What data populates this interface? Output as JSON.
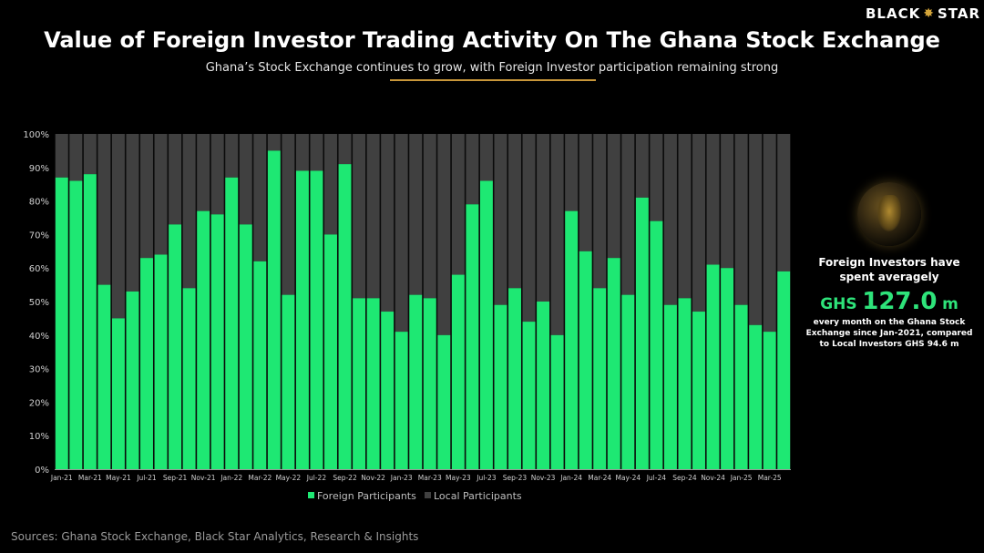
{
  "brand": {
    "name_left": "BLACK",
    "name_right": "STAR"
  },
  "title": "Value of Foreign Investor Trading Activity On The Ghana Stock Exchange",
  "subtitle": "Ghana’s Stock Exchange continues to grow, with Foreign Investor participation remaining strong",
  "side": {
    "heading": "Foreign Investors have spent averagely",
    "currency": "GHS",
    "value": "127.0",
    "unit": "m",
    "note": "every month on the Ghana Stock Exchange since Jan-2021, compared to Local Investors GHS 94.6 m"
  },
  "source": "Sources: Ghana Stock Exchange, Black Star Analytics, Research & Insights",
  "colors": {
    "foreign": "#1ee873",
    "local": "#404040",
    "accent": "#c9973a"
  },
  "chart_data": {
    "type": "bar",
    "stacked": true,
    "percent": true,
    "ylim": [
      0,
      100
    ],
    "yticks": [
      "0%",
      "10%",
      "20%",
      "30%",
      "40%",
      "50%",
      "60%",
      "70%",
      "80%",
      "90%",
      "100%"
    ],
    "x_tick_labels": [
      "Jan-21",
      "Mar-21",
      "May-21",
      "Jul-21",
      "Sep-21",
      "Nov-21",
      "Jan-22",
      "Mar-22",
      "May-22",
      "Jul-22",
      "Sep-22",
      "Nov-22",
      "Jan-23",
      "Mar-23",
      "May-23",
      "Jul-23",
      "Sep-23",
      "Nov-23",
      "Jan-24",
      "Mar-24",
      "May-24",
      "Jul-24",
      "Sep-24",
      "Nov-24",
      "Jan-25",
      "Mar-25"
    ],
    "categories": [
      "Jan-21",
      "Feb-21",
      "Mar-21",
      "Apr-21",
      "May-21",
      "Jun-21",
      "Jul-21",
      "Aug-21",
      "Sep-21",
      "Oct-21",
      "Nov-21",
      "Dec-21",
      "Jan-22",
      "Feb-22",
      "Mar-22",
      "Apr-22",
      "May-22",
      "Jun-22",
      "Jul-22",
      "Aug-22",
      "Sep-22",
      "Oct-22",
      "Nov-22",
      "Dec-22",
      "Jan-23",
      "Feb-23",
      "Mar-23",
      "Apr-23",
      "May-23",
      "Jun-23",
      "Jul-23",
      "Aug-23",
      "Sep-23",
      "Oct-23",
      "Nov-23",
      "Dec-23",
      "Jan-24",
      "Feb-24",
      "Mar-24",
      "Apr-24",
      "May-24",
      "Jun-24",
      "Jul-24",
      "Aug-24",
      "Sep-24",
      "Oct-24",
      "Nov-24",
      "Dec-24",
      "Jan-25",
      "Feb-25",
      "Mar-25",
      "Apr-25"
    ],
    "series": [
      {
        "name": "Foreign Participants",
        "values": [
          87,
          86,
          88,
          55,
          45,
          53,
          63,
          64,
          73,
          54,
          77,
          76,
          87,
          73,
          62,
          95,
          52,
          89,
          89,
          70,
          91,
          51,
          51,
          47,
          41,
          52,
          51,
          40,
          58,
          79,
          86,
          49,
          54,
          44,
          50,
          40,
          77,
          65,
          54,
          63,
          52,
          81,
          74,
          49,
          51,
          47,
          61,
          60,
          49,
          43,
          41,
          59
        ]
      },
      {
        "name": "Local Participants",
        "values": [
          13,
          14,
          12,
          45,
          55,
          47,
          37,
          36,
          27,
          46,
          23,
          24,
          13,
          27,
          38,
          5,
          48,
          11,
          11,
          30,
          9,
          49,
          49,
          53,
          59,
          48,
          49,
          60,
          42,
          21,
          14,
          51,
          46,
          56,
          50,
          60,
          23,
          35,
          46,
          37,
          48,
          19,
          26,
          51,
          49,
          53,
          39,
          40,
          51,
          57,
          59,
          41
        ]
      }
    ],
    "legend_position": "bottom"
  }
}
